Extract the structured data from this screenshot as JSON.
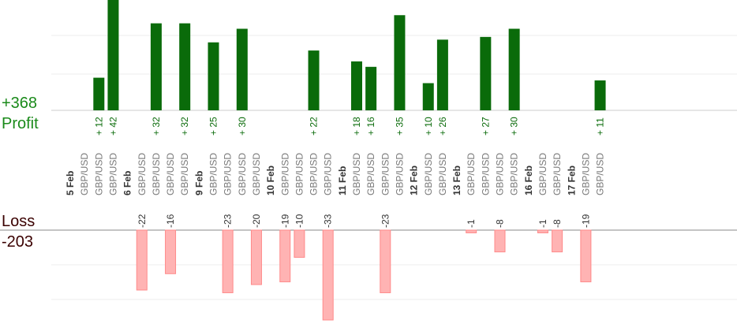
{
  "summary": {
    "profit_total": "+368",
    "profit_label": "Profit",
    "loss_label": "Loss",
    "loss_total": "-203"
  },
  "colors": {
    "profit_bar": "#0a6b0a",
    "profit_text": "#0a6b0a",
    "loss_bar": "#ffb3b3",
    "loss_border": "#ff8a8a",
    "loss_text": "#333333",
    "summary_profit": "#1a8a1a",
    "summary_loss": "#3a0000"
  },
  "chart_data": {
    "type": "bar",
    "title": "",
    "xlabel": "",
    "ylabel": "",
    "symbol": "GBP/USD",
    "profit_ylim": [
      0,
      40
    ],
    "loss_ylim": [
      -33,
      0
    ],
    "grid": true,
    "columns": [
      {
        "date": "5 Feb"
      },
      {
        "symbol": "GBP/USD"
      },
      {
        "symbol": "GBP/USD",
        "value": 12
      },
      {
        "symbol": "GBP/USD",
        "value": 42
      },
      {
        "date": "6 Feb"
      },
      {
        "symbol": "GBP/USD",
        "value": -22
      },
      {
        "symbol": "GBP/USD",
        "value": 32
      },
      {
        "symbol": "GBP/USD",
        "value": -16
      },
      {
        "symbol": "GBP/USD",
        "value": 32
      },
      {
        "date": "9 Feb"
      },
      {
        "symbol": "GBP/USD",
        "value": 25
      },
      {
        "symbol": "GBP/USD",
        "value": -23
      },
      {
        "symbol": "GBP/USD",
        "value": 30
      },
      {
        "symbol": "GBP/USD",
        "value": -20
      },
      {
        "date": "10 Feb"
      },
      {
        "symbol": "GBP/USD",
        "value": -19
      },
      {
        "symbol": "GBP/USD",
        "value": -10
      },
      {
        "symbol": "GBP/USD",
        "value": 22
      },
      {
        "symbol": "GBP/USD",
        "value": -33
      },
      {
        "date": "11 Feb"
      },
      {
        "symbol": "GBP/USD",
        "value": 18
      },
      {
        "symbol": "GBP/USD",
        "value": 16
      },
      {
        "symbol": "GBP/USD",
        "value": -23
      },
      {
        "symbol": "GBP/USD",
        "value": 35
      },
      {
        "date": "12 Feb"
      },
      {
        "symbol": "GBP/USD",
        "value": 10
      },
      {
        "symbol": "GBP/USD",
        "value": 26
      },
      {
        "date": "13 Feb"
      },
      {
        "symbol": "GBP/USD",
        "value": -1
      },
      {
        "symbol": "GBP/USD",
        "value": 27
      },
      {
        "symbol": "GBP/USD",
        "value": -8
      },
      {
        "symbol": "GBP/USD",
        "value": 30
      },
      {
        "date": "16 Feb"
      },
      {
        "symbol": "GBP/USD",
        "value": -1
      },
      {
        "symbol": "GBP/USD",
        "value": -8
      },
      {
        "date": "17 Feb"
      },
      {
        "symbol": "GBP/USD",
        "value": -19
      },
      {
        "symbol": "GBP/USD",
        "value": 11
      }
    ]
  }
}
